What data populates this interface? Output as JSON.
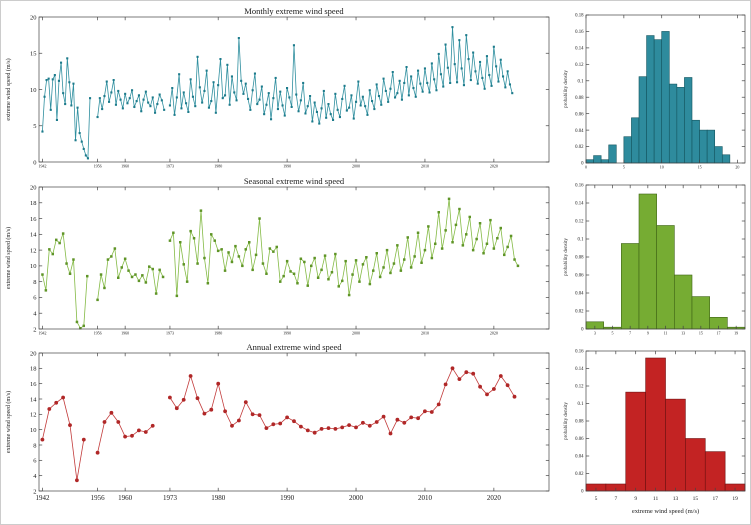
{
  "figure": {
    "accent_colors": {
      "monthly_line": "#2f8f9f",
      "monthly_marker": "#1d7b8b",
      "monthly_fill": "#2e8b9d",
      "monthly_edge": "#14555f",
      "seasonal_line": "#84ba45",
      "seasonal_marker": "#5f9427",
      "seasonal_fill": "#76ac33",
      "seasonal_edge": "#3e6316",
      "annual_line": "#c23b3b",
      "annual_marker": "#b02727",
      "annual_fill": "#c32323",
      "annual_edge": "#6f1111"
    }
  },
  "chart_data": [
    {
      "type": "line",
      "title": "Monthly extreme wind speed",
      "ylabel": "extreme wind speed (m/s)",
      "ylim": [
        0,
        20
      ],
      "yticks": [
        {
          "v": 0,
          "label": "0"
        },
        {
          "v": 5,
          "label": "5"
        },
        {
          "v": 10,
          "label": "10"
        },
        {
          "v": 15,
          "label": "15"
        },
        {
          "v": 20,
          "label": "20"
        }
      ],
      "xlim": [
        0,
        74
      ],
      "xticks": [
        {
          "v": 0.5,
          "label": "1942"
        },
        {
          "v": 8.5,
          "label": "1956"
        },
        {
          "v": 12.5,
          "label": "1960"
        },
        {
          "v": 19,
          "label": "1973"
        },
        {
          "v": 26,
          "label": "1980"
        },
        {
          "v": 36,
          "label": "1990"
        },
        {
          "v": 46,
          "label": "2000"
        },
        {
          "v": 56,
          "label": "2010"
        },
        {
          "v": 66,
          "label": "2020"
        }
      ],
      "xtick_size": "tiny",
      "line_color": "#2f8f9f",
      "marker_color": "#1d7b8b",
      "segments": [
        {
          "x0": 0.5,
          "dx": 0.3,
          "values": [
            4.2,
            9.0,
            11.3,
            11.5,
            7.2,
            11.4,
            12.0,
            5.8,
            11.2,
            13.7,
            9.5,
            8.0,
            14.3,
            11.0,
            7.8,
            10.8,
            3.0,
            7.5,
            4.0,
            2.8,
            1.8,
            0.9,
            0.5,
            8.8
          ]
        },
        {
          "x0": 8.5,
          "dx": 0.3333,
          "values": [
            6.2,
            8.8,
            7.3,
            9.1,
            11.1,
            8.3,
            9.6,
            11.3,
            7.9,
            9.8,
            8.6,
            7.4,
            9.4,
            8.1,
            8.8,
            9.9,
            7.6,
            8.4,
            9.2,
            7.0,
            8.6,
            9.7,
            8.2,
            7.7,
            8.9,
            6.8,
            8.0,
            9.3,
            8.5,
            7.2
          ]
        },
        {
          "x0": 19,
          "dx": 0.3333,
          "values": [
            7.8,
            10.2,
            6.5,
            8.9,
            12.1,
            7.4,
            9.6,
            8.1,
            6.9,
            11.4,
            9.0,
            7.7,
            14.5,
            10.3,
            8.2,
            9.8,
            12.6,
            7.5,
            8.4,
            11.0,
            6.8,
            10.6,
            14.2,
            8.8,
            9.2,
            13.4,
            7.9,
            11.8,
            9.6,
            8.5,
            17.1,
            11.2,
            9.4,
            10.8,
            8.7,
            7.2,
            9.9,
            12.2,
            8.0,
            8.6,
            10.4,
            6.6,
            7.9,
            9.5,
            5.9,
            8.8,
            11.6,
            7.3,
            9.7,
            7.8,
            6.4,
            10.2,
            8.9,
            7.6,
            16.1,
            9.3,
            7.0,
            8.5,
            10.9,
            6.7,
            7.7,
            9.1,
            5.6,
            8.2,
            6.9,
            5.3,
            7.4,
            9.8,
            6.1,
            8.0,
            6.6,
            5.8,
            9.4,
            7.2,
            6.2,
            8.7,
            10.5,
            7.1,
            7.5,
            9.2,
            6.0,
            8.3,
            11.1,
            7.8,
            9.0,
            7.7,
            6.5,
            9.9,
            8.4,
            7.3,
            10.7,
            9.1,
            7.9,
            11.5,
            9.8,
            8.3,
            10.1,
            12.4,
            8.9,
            9.5,
            11.2,
            8.6,
            10.9,
            13.1,
            9.2,
            11.8,
            10.2,
            9.0,
            12.6,
            10.8,
            9.7,
            12.9,
            10.9,
            9.6,
            13.6,
            11.4,
            9.9,
            14.9,
            12.1,
            10.4,
            16.2,
            13.0,
            10.9,
            18.6,
            13.5,
            11.0,
            16.8,
            12.9,
            10.6,
            17.5,
            14.2,
            11.3,
            15.1,
            12.5,
            10.8,
            13.8,
            11.6,
            10.1,
            14.6,
            12.0,
            10.5,
            15.9,
            13.2,
            11.1,
            14.1,
            11.8,
            10.3,
            12.5,
            10.7,
            9.5
          ]
        }
      ]
    },
    {
      "type": "line",
      "title": "Seasonal extreme wind speed",
      "ylabel": "extreme wind speed (m/s)",
      "ylim": [
        2,
        20
      ],
      "yticks": [
        {
          "v": 2,
          "label": "2"
        },
        {
          "v": 4,
          "label": "4"
        },
        {
          "v": 6,
          "label": "6"
        },
        {
          "v": 8,
          "label": "8"
        },
        {
          "v": 10,
          "label": "10"
        },
        {
          "v": 12,
          "label": "12"
        },
        {
          "v": 14,
          "label": "14"
        },
        {
          "v": 16,
          "label": "16"
        },
        {
          "v": 18,
          "label": "18"
        },
        {
          "v": 20,
          "label": "20"
        }
      ],
      "xlim": [
        0,
        74
      ],
      "xticks": [
        {
          "v": 0.5,
          "label": "1942"
        },
        {
          "v": 8.5,
          "label": "1956"
        },
        {
          "v": 12.5,
          "label": "1960"
        },
        {
          "v": 19,
          "label": "1973"
        },
        {
          "v": 26,
          "label": "1980"
        },
        {
          "v": 36,
          "label": "1990"
        },
        {
          "v": 46,
          "label": "2000"
        },
        {
          "v": 56,
          "label": "2010"
        },
        {
          "v": 66,
          "label": "2020"
        }
      ],
      "xtick_size": "tiny",
      "line_color": "#84ba45",
      "marker_color": "#5f9427",
      "segments": [
        {
          "x0": 0.5,
          "dx": 0.5,
          "values": [
            8.9,
            6.9,
            12.1,
            11.5,
            13.3,
            12.9,
            14.1,
            10.3,
            9.0,
            10.8,
            2.9,
            2.1,
            2.4,
            8.7
          ]
        },
        {
          "x0": 8.5,
          "dx": 0.5,
          "values": [
            5.7,
            8.9,
            7.2,
            10.8,
            11.2,
            12.2,
            8.5,
            9.8,
            10.9,
            9.4,
            8.6,
            8.9,
            8.1,
            8.8,
            7.9,
            9.9,
            9.6,
            6.5,
            9.5,
            8.6
          ]
        },
        {
          "x0": 19,
          "dx": 0.5,
          "values": [
            13.2,
            14.2,
            6.2,
            13.0,
            10.2,
            8.0,
            14.4,
            13.5,
            10.3,
            17.0,
            11.0,
            7.8,
            14.0,
            13.2,
            11.9,
            12.1,
            9.4,
            11.7,
            10.5,
            12.5,
            11.2,
            10.0,
            12.1,
            13.0,
            9.5,
            11.4,
            16.0,
            10.3,
            9.0,
            12.2,
            11.8,
            12.4,
            8.0,
            8.7,
            10.6,
            9.3,
            9.0,
            7.8,
            10.9,
            10.5,
            7.5,
            10.0,
            11.0,
            8.5,
            9.5,
            11.3,
            8.3,
            9.2,
            11.5,
            7.4,
            8.1,
            10.6,
            6.3,
            8.9,
            10.7,
            8.0,
            10.2,
            11.1,
            7.7,
            9.4,
            11.6,
            8.6,
            9.8,
            12.0,
            9.1,
            10.3,
            12.6,
            9.4,
            10.8,
            13.6,
            9.8,
            11.2,
            14.2,
            10.4,
            12.0,
            15.0,
            11.0,
            12.8,
            16.8,
            12.2,
            14.5,
            18.5,
            13.0,
            15.2,
            17.2,
            12.6,
            14.0,
            16.2,
            12.0,
            13.4,
            15.4,
            11.6,
            12.8,
            15.8,
            12.2,
            13.5,
            14.8,
            11.4,
            12.4,
            13.8,
            10.8,
            10.0
          ]
        }
      ]
    },
    {
      "type": "line",
      "title": "Annual extreme wind speed",
      "ylabel": "extreme wind speed (m/s)",
      "ylim": [
        2,
        20
      ],
      "yticks": [
        {
          "v": 2,
          "label": "2"
        },
        {
          "v": 4,
          "label": "4"
        },
        {
          "v": 6,
          "label": "6"
        },
        {
          "v": 8,
          "label": "8"
        },
        {
          "v": 10,
          "label": "10"
        },
        {
          "v": 12,
          "label": "12"
        },
        {
          "v": 14,
          "label": "14"
        },
        {
          "v": 16,
          "label": "16"
        },
        {
          "v": 18,
          "label": "18"
        },
        {
          "v": 20,
          "label": "20"
        }
      ],
      "xlim": [
        0,
        74
      ],
      "xticks": [
        {
          "v": 0.5,
          "label": "1942"
        },
        {
          "v": 8.5,
          "label": "1956"
        },
        {
          "v": 12.5,
          "label": "1960"
        },
        {
          "v": 19,
          "label": "1973"
        },
        {
          "v": 26,
          "label": "1980"
        },
        {
          "v": 36,
          "label": "1990"
        },
        {
          "v": 46,
          "label": "2000"
        },
        {
          "v": 56,
          "label": "2010"
        },
        {
          "v": 66,
          "label": "2020"
        }
      ],
      "xtick_size": "normal",
      "line_color": "#c23b3b",
      "marker_color": "#b02727",
      "segments": [
        {
          "x0": 0.5,
          "dx": 1,
          "values": [
            8.7,
            12.7,
            13.5,
            14.2,
            10.6,
            3.4,
            8.7
          ]
        },
        {
          "x0": 8.5,
          "dx": 1,
          "values": [
            7.0,
            11.0,
            12.2,
            11.0,
            9.1,
            9.2,
            9.9,
            9.7,
            10.5
          ]
        },
        {
          "x0": 19,
          "dx": 1,
          "values": [
            14.2,
            12.8,
            13.9,
            17.0,
            14.1,
            12.1,
            12.6,
            16.0,
            12.4,
            10.5,
            11.2,
            13.6,
            12.0,
            11.9,
            10.2,
            10.7,
            10.8,
            11.6,
            11.1,
            10.4,
            9.9,
            9.6,
            10.1,
            10.2,
            10.1,
            10.3,
            10.6,
            10.3,
            10.9,
            10.5,
            11.0,
            11.7,
            9.5,
            11.3,
            10.9,
            11.6,
            11.5,
            12.4,
            12.3,
            13.3,
            15.9,
            18.0,
            16.6,
            17.5,
            17.3,
            15.6,
            14.6,
            15.3,
            17.0,
            15.8,
            14.3
          ]
        }
      ]
    },
    {
      "type": "histogram",
      "ylabel": "probability density",
      "ylim": [
        0,
        0.18
      ],
      "yticks": [
        {
          "v": 0,
          "label": "0"
        },
        {
          "v": 0.02,
          "label": "0.02"
        },
        {
          "v": 0.04,
          "label": "0.04"
        },
        {
          "v": 0.06,
          "label": "0.06"
        },
        {
          "v": 0.08,
          "label": "0.08"
        },
        {
          "v": 0.1,
          "label": "0.1"
        },
        {
          "v": 0.12,
          "label": "0.12"
        },
        {
          "v": 0.14,
          "label": "0.14"
        },
        {
          "v": 0.16,
          "label": "0.16"
        },
        {
          "v": 0.18,
          "label": "0.18"
        }
      ],
      "xlim": [
        0,
        21
      ],
      "xticks": [
        {
          "v": 0,
          "label": "0"
        },
        {
          "v": 5,
          "label": "5"
        },
        {
          "v": 10,
          "label": "10"
        },
        {
          "v": 15,
          "label": "15"
        },
        {
          "v": 20,
          "label": "20"
        }
      ],
      "xtick_size": "tiny",
      "bin_start": 0,
      "bin_width": 1,
      "values": [
        0.004,
        0.009,
        0.004,
        0.022,
        0,
        0.032,
        0.055,
        0.105,
        0.155,
        0.15,
        0.16,
        0.096,
        0.092,
        0.104,
        0.052,
        0.04,
        0.04,
        0.02,
        0.01
      ],
      "fill": "#2e8b9d",
      "edge": "#14555f"
    },
    {
      "type": "histogram",
      "ylabel": "probability density",
      "ylim": [
        0,
        0.16
      ],
      "yticks": [
        {
          "v": 0,
          "label": "0"
        },
        {
          "v": 0.02,
          "label": "0.02"
        },
        {
          "v": 0.04,
          "label": "0.04"
        },
        {
          "v": 0.06,
          "label": "0.06"
        },
        {
          "v": 0.08,
          "label": "0.08"
        },
        {
          "v": 0.1,
          "label": "0.1"
        },
        {
          "v": 0.12,
          "label": "0.12"
        },
        {
          "v": 0.14,
          "label": "0.14"
        },
        {
          "v": 0.16,
          "label": "0.16"
        }
      ],
      "xlim": [
        2,
        20
      ],
      "xticks": [
        {
          "v": 3,
          "label": "3"
        },
        {
          "v": 5,
          "label": "5"
        },
        {
          "v": 7,
          "label": "7"
        },
        {
          "v": 9,
          "label": "9"
        },
        {
          "v": 11,
          "label": "11"
        },
        {
          "v": 13,
          "label": "13"
        },
        {
          "v": 15,
          "label": "15"
        },
        {
          "v": 17,
          "label": "17"
        },
        {
          "v": 19,
          "label": "19"
        }
      ],
      "xtick_size": "tiny",
      "bin_start": 2,
      "bin_width": 2,
      "values": [
        0.008,
        0.002,
        0.095,
        0.15,
        0.115,
        0.06,
        0.036,
        0.013,
        0.002
      ],
      "fill": "#76ac33",
      "edge": "#3e6316"
    },
    {
      "type": "histogram",
      "ylabel": "probability density",
      "xlabel": "extreme wind speed (m/s)",
      "ylim": [
        0,
        0.16
      ],
      "yticks": [
        {
          "v": 0,
          "label": "0"
        },
        {
          "v": 0.02,
          "label": "0.02"
        },
        {
          "v": 0.04,
          "label": "0.04"
        },
        {
          "v": 0.06,
          "label": "0.06"
        },
        {
          "v": 0.08,
          "label": "0.08"
        },
        {
          "v": 0.1,
          "label": "0.1"
        },
        {
          "v": 0.12,
          "label": "0.12"
        },
        {
          "v": 0.14,
          "label": "0.14"
        },
        {
          "v": 0.16,
          "label": "0.16"
        }
      ],
      "xlim": [
        4,
        20
      ],
      "xticks": [
        {
          "v": 5,
          "label": "5"
        },
        {
          "v": 7,
          "label": "7"
        },
        {
          "v": 9,
          "label": "9"
        },
        {
          "v": 11,
          "label": "11"
        },
        {
          "v": 13,
          "label": "13"
        },
        {
          "v": 15,
          "label": "15"
        },
        {
          "v": 17,
          "label": "17"
        },
        {
          "v": 19,
          "label": "19"
        }
      ],
      "xtick_size": "normal",
      "bin_start": 4,
      "bin_width": 2,
      "values": [
        0.008,
        0.008,
        0.113,
        0.152,
        0.105,
        0.06,
        0.045,
        0.008
      ],
      "fill": "#c32323",
      "edge": "#6f1111"
    }
  ]
}
